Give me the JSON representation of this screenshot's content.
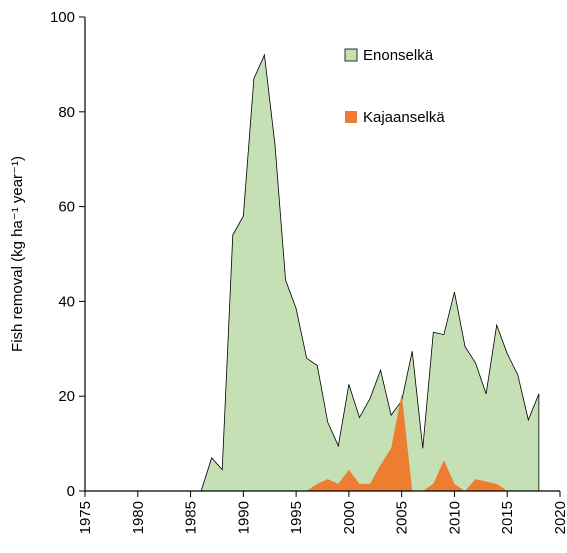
{
  "chart_data": {
    "type": "area",
    "ylabel": "Fish removal (kg ha⁻¹ year⁻¹)",
    "series": [
      {
        "name": "Enonselkä",
        "color": "#c5e0b4",
        "x": [
          1986,
          1987,
          1988,
          1989,
          1990,
          1991,
          1992,
          1993,
          1994,
          1995,
          1996,
          1997,
          1998,
          1999,
          2000,
          2001,
          2002,
          2003,
          2004,
          2005,
          2006,
          2007,
          2008,
          2009,
          2010,
          2011,
          2012,
          2013,
          2014,
          2015,
          2016,
          2017,
          2018
        ],
        "values": [
          0,
          7,
          4.5,
          54,
          58,
          87,
          92,
          73,
          44.5,
          38.5,
          28,
          26.5,
          14.5,
          9.5,
          22.5,
          15.5,
          19.5,
          25.5,
          16,
          19,
          29.5,
          9,
          33.5,
          33,
          42,
          30.5,
          27,
          20.5,
          35,
          29,
          24.5,
          15,
          20.5
        ]
      },
      {
        "name": "Kajaanselkä",
        "color": "#ed7d31",
        "x": [
          1996,
          1997,
          1998,
          1999,
          2000,
          2001,
          2002,
          2003,
          2004,
          2005,
          2006,
          2007,
          2008,
          2009,
          2010,
          2011,
          2012,
          2013,
          2014,
          2015
        ],
        "values": [
          0,
          1.5,
          2.5,
          1.5,
          4.5,
          1.5,
          1.5,
          5.5,
          9,
          20.5,
          0,
          0,
          1.5,
          6.5,
          1.5,
          0,
          2.5,
          2,
          1.5,
          0
        ]
      }
    ],
    "xlim": [
      1975,
      2020
    ],
    "xticks": [
      1975,
      1980,
      1985,
      1990,
      1995,
      2000,
      2005,
      2010,
      2015,
      2020
    ],
    "ylim": [
      0,
      100
    ],
    "yticks": [
      0,
      20,
      40,
      60,
      80,
      100
    ],
    "legend": "upper right"
  }
}
